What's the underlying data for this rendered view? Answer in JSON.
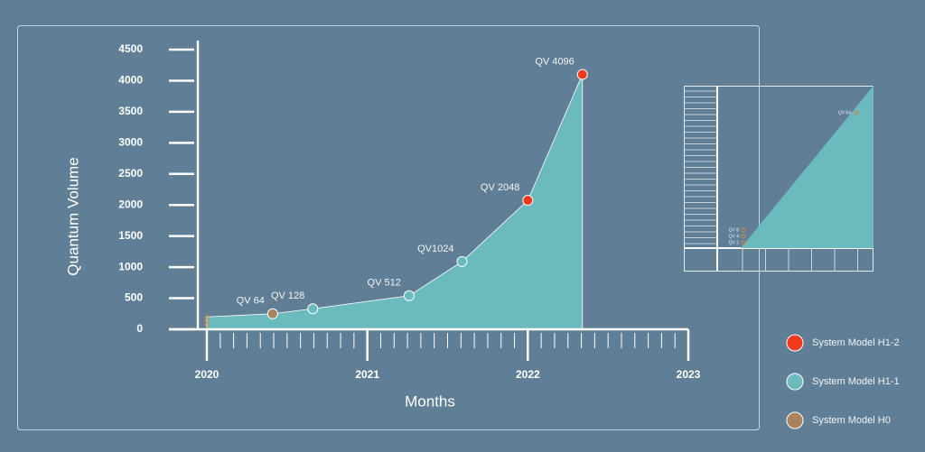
{
  "chart_data": {
    "type": "area",
    "ylabel": "Quantum Volume",
    "xlabel": "Months",
    "xlim": [
      2020,
      2023
    ],
    "xticks": [
      2020,
      2021,
      2022,
      2023
    ],
    "ylim": [
      0,
      4500
    ],
    "yticks": [
      0,
      500,
      1000,
      1500,
      2000,
      2500,
      3000,
      3500,
      4000,
      4500
    ],
    "area_color": "#6bbabd",
    "series": [
      {
        "name": "System Model H1-2",
        "color": "#f2391c",
        "x": [
          2022.0,
          2022.34
        ],
        "values": [
          2075,
          4100
        ],
        "point_labels": [
          "QV 2048",
          "QV 4096"
        ]
      },
      {
        "name": "System Model H1-1",
        "color": "#6bbabd",
        "x": [
          2020.66,
          2021.26,
          2021.59
        ],
        "values": [
          330,
          540,
          1090
        ],
        "point_labels": [
          "QV 128",
          "QV 512",
          "QV1024"
        ]
      },
      {
        "name": "System Model H0",
        "color": "#a8835e",
        "x": [
          2020,
          2020,
          2020,
          2020.41
        ],
        "values": [
          70,
          140,
          200,
          250
        ],
        "point_labels": [
          null,
          null,
          null,
          "QV 64"
        ]
      }
    ],
    "inset_labels": [
      "QV 8",
      "QV 4",
      "QV 2",
      "QV 64"
    ]
  }
}
